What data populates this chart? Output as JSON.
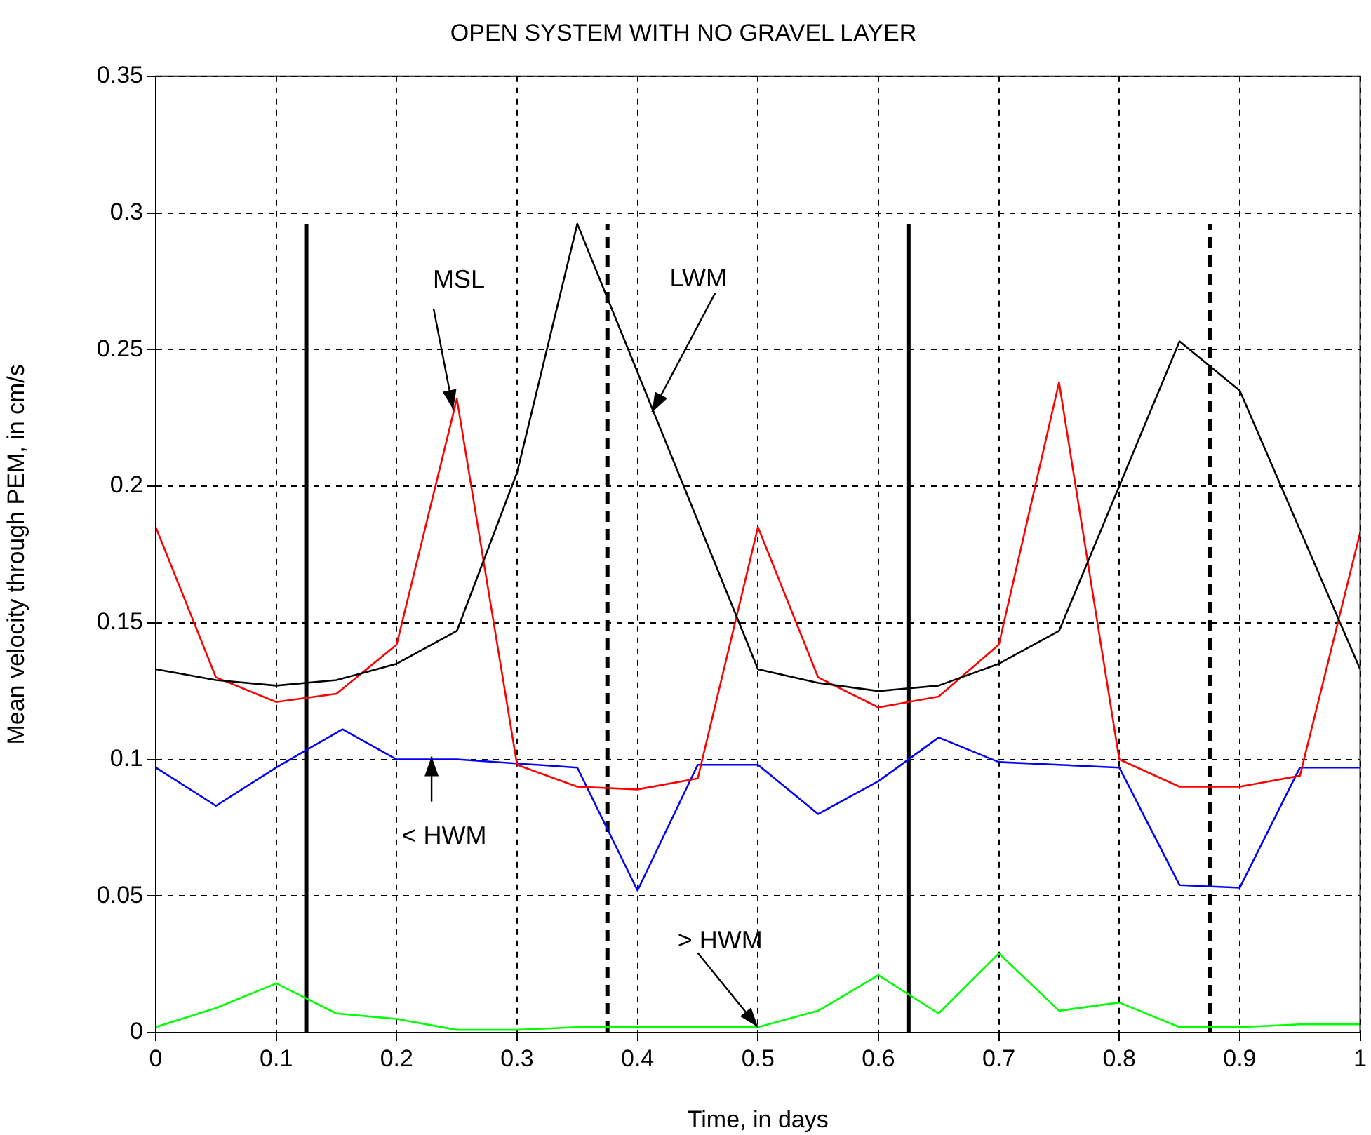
{
  "chart_data": {
    "type": "line",
    "title": "OPEN SYSTEM WITH NO GRAVEL LAYER",
    "xlabel": "Time, in days",
    "ylabel": "Mean velocity through PEM, in cm/s",
    "xlim": [
      0,
      1
    ],
    "xticks": [
      0,
      0.1,
      0.2,
      0.3,
      0.4,
      0.5,
      0.6,
      0.7,
      0.8,
      0.9,
      1
    ],
    "ylim": [
      0,
      0.35
    ],
    "yticks": [
      0,
      0.05,
      0.1,
      0.15,
      0.2,
      0.25,
      0.3,
      0.35
    ],
    "grid": true,
    "legend": false,
    "marker": "none",
    "series": [
      {
        "color": "#000000",
        "x": [
          0,
          0.05,
          0.1,
          0.15,
          0.2,
          0.25,
          0.3,
          0.35,
          0.5,
          0.55,
          0.6,
          0.65,
          0.7,
          0.75,
          0.8,
          0.85,
          0.9,
          1
        ],
        "values": [
          0.133,
          0.129,
          0.127,
          0.129,
          0.135,
          0.147,
          0.205,
          0.296,
          0.133,
          0.128,
          0.125,
          0.127,
          0.135,
          0.147,
          0.2,
          0.253,
          0.235,
          0.133
        ]
      },
      {
        "color": "#ff0000",
        "x": [
          0,
          0.05,
          0.1,
          0.15,
          0.2,
          0.25,
          0.3,
          0.35,
          0.4,
          0.45,
          0.5,
          0.55,
          0.6,
          0.65,
          0.7,
          0.75,
          0.8,
          0.85,
          0.9,
          0.95,
          1
        ],
        "values": [
          0.185,
          0.13,
          0.121,
          0.124,
          0.142,
          0.232,
          0.098,
          0.09,
          0.089,
          0.093,
          0.185,
          0.13,
          0.119,
          0.123,
          0.142,
          0.238,
          0.1,
          0.09,
          0.09,
          0.094,
          0.183
        ]
      },
      {
        "color": "#0000ff",
        "x": [
          0,
          0.05,
          0.1,
          0.155,
          0.2,
          0.25,
          0.35,
          0.4,
          0.45,
          0.5,
          0.55,
          0.6,
          0.65,
          0.7,
          0.8,
          0.85,
          0.9,
          0.95,
          1
        ],
        "values": [
          0.097,
          0.083,
          0.097,
          0.111,
          0.1,
          0.1,
          0.097,
          0.052,
          0.098,
          0.098,
          0.08,
          0.092,
          0.108,
          0.099,
          0.097,
          0.054,
          0.053,
          0.097,
          0.097
        ]
      },
      {
        "color": "#00ff00",
        "x": [
          0,
          0.05,
          0.1,
          0.15,
          0.2,
          0.25,
          0.3,
          0.35,
          0.4,
          0.45,
          0.5,
          0.55,
          0.6,
          0.65,
          0.7,
          0.75,
          0.8,
          0.85,
          0.9,
          0.95,
          1
        ],
        "values": [
          0.002,
          0.009,
          0.018,
          0.007,
          0.005,
          0.001,
          0.001,
          0.002,
          0.002,
          0.002,
          0.002,
          0.008,
          0.021,
          0.007,
          0.029,
          0.008,
          0.011,
          0.002,
          0.002,
          0.003,
          0.003
        ]
      },
      {
        "color": "#000000",
        "line_style": "solid",
        "x": [
          0.125,
          0.125
        ],
        "values": [
          0,
          0.296
        ]
      },
      {
        "color": "#000000",
        "line_style": "dashed",
        "x": [
          0.375,
          0.375
        ],
        "values": [
          0,
          0.296
        ]
      },
      {
        "color": "#000000",
        "line_style": "solid",
        "x": [
          0.625,
          0.625
        ],
        "values": [
          0,
          0.296
        ]
      },
      {
        "color": "#000000",
        "line_style": "dashed",
        "x": [
          0.875,
          0.875
        ],
        "values": [
          0,
          0.296
        ]
      }
    ],
    "annotations": [
      {
        "text": "MSL",
        "x": 0.247,
        "y": 0.228
      },
      {
        "text": "LWM",
        "x": 0.412,
        "y": 0.227
      },
      {
        "text": "< HWM",
        "x": 0.229,
        "y": 0.101
      },
      {
        "text": "> HWM",
        "x": 0.5,
        "y": 0.002
      }
    ]
  }
}
